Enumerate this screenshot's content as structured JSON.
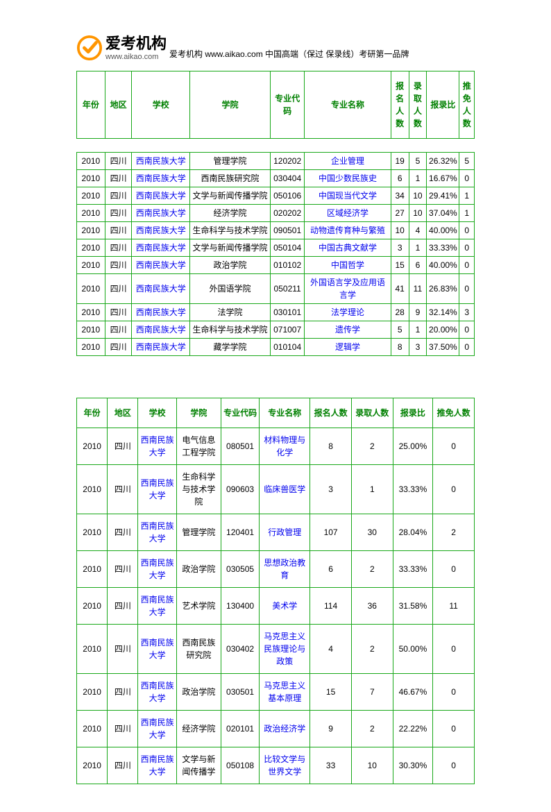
{
  "logo": {
    "cn": "爱考机构",
    "en": "www.aikao.com",
    "tagline": "爱考机构 www.aikao.com  中国高端（保过 保录线）考研第一品牌"
  },
  "headers": [
    "年份",
    "地区",
    "学校",
    "学院",
    "专业代码",
    "专业名称",
    "报名人数",
    "录取人数",
    "报录比",
    "推免人数"
  ],
  "table1": {
    "rows": [
      {
        "year": "2010",
        "region": "四川",
        "school": "西南民族大学",
        "college": "管理学院",
        "code": "120202",
        "major": "企业管理",
        "apply": "19",
        "admit": "5",
        "ratio": "26.32%",
        "exempt": "5"
      },
      {
        "year": "2010",
        "region": "四川",
        "school": "西南民族大学",
        "college": "西南民族研究院",
        "code": "030404",
        "major": "中国少数民族史",
        "apply": "6",
        "admit": "1",
        "ratio": "16.67%",
        "exempt": "0"
      },
      {
        "year": "2010",
        "region": "四川",
        "school": "西南民族大学",
        "college": "文学与新闻传播学院",
        "code": "050106",
        "major": "中国现当代文学",
        "apply": "34",
        "admit": "10",
        "ratio": "29.41%",
        "exempt": "1"
      },
      {
        "year": "2010",
        "region": "四川",
        "school": "西南民族大学",
        "college": "经济学院",
        "code": "020202",
        "major": "区域经济学",
        "apply": "27",
        "admit": "10",
        "ratio": "37.04%",
        "exempt": "1"
      },
      {
        "year": "2010",
        "region": "四川",
        "school": "西南民族大学",
        "college": "生命科学与技术学院",
        "code": "090501",
        "major": "动物遗传育种与繁殖",
        "apply": "10",
        "admit": "4",
        "ratio": "40.00%",
        "exempt": "0"
      },
      {
        "year": "2010",
        "region": "四川",
        "school": "西南民族大学",
        "college": "文学与新闻传播学院",
        "code": "050104",
        "major": "中国古典文献学",
        "apply": "3",
        "admit": "1",
        "ratio": "33.33%",
        "exempt": "0"
      },
      {
        "year": "2010",
        "region": "四川",
        "school": "西南民族大学",
        "college": "政治学院",
        "code": "010102",
        "major": "中国哲学",
        "apply": "15",
        "admit": "6",
        "ratio": "40.00%",
        "exempt": "0"
      },
      {
        "year": "2010",
        "region": "四川",
        "school": "西南民族大学",
        "college": "外国语学院",
        "code": "050211",
        "major": "外国语言学及应用语言学",
        "apply": "41",
        "admit": "11",
        "ratio": "26.83%",
        "exempt": "0"
      },
      {
        "year": "2010",
        "region": "四川",
        "school": "西南民族大学",
        "college": "法学院",
        "code": "030101",
        "major": "法学理论",
        "apply": "28",
        "admit": "9",
        "ratio": "32.14%",
        "exempt": "3"
      },
      {
        "year": "2010",
        "region": "四川",
        "school": "西南民族大学",
        "college": "生命科学与技术学院",
        "code": "071007",
        "major": "遗传学",
        "apply": "5",
        "admit": "1",
        "ratio": "20.00%",
        "exempt": "0"
      },
      {
        "year": "2010",
        "region": "四川",
        "school": "西南民族大学",
        "college": "藏学学院",
        "code": "010104",
        "major": "逻辑学",
        "apply": "8",
        "admit": "3",
        "ratio": "37.50%",
        "exempt": "0"
      }
    ]
  },
  "table2": {
    "rows": [
      {
        "year": "2010",
        "region": "四川",
        "school": "西南民族大学",
        "college": "电气信息工程学院",
        "code": "080501",
        "major": "材料物理与化学",
        "apply": "8",
        "admit": "2",
        "ratio": "25.00%",
        "exempt": "0"
      },
      {
        "year": "2010",
        "region": "四川",
        "school": "西南民族大学",
        "college": "生命科学与技术学院",
        "code": "090603",
        "major": "临床兽医学",
        "apply": "3",
        "admit": "1",
        "ratio": "33.33%",
        "exempt": "0"
      },
      {
        "year": "2010",
        "region": "四川",
        "school": "西南民族大学",
        "college": "管理学院",
        "code": "120401",
        "major": "行政管理",
        "apply": "107",
        "admit": "30",
        "ratio": "28.04%",
        "exempt": "2"
      },
      {
        "year": "2010",
        "region": "四川",
        "school": "西南民族大学",
        "college": "政治学院",
        "code": "030505",
        "major": "思想政治教育",
        "apply": "6",
        "admit": "2",
        "ratio": "33.33%",
        "exempt": "0"
      },
      {
        "year": "2010",
        "region": "四川",
        "school": "西南民族大学",
        "college": "艺术学院",
        "code": "130400",
        "major": "美术学",
        "apply": "114",
        "admit": "36",
        "ratio": "31.58%",
        "exempt": "11"
      },
      {
        "year": "2010",
        "region": "四川",
        "school": "西南民族大学",
        "college": "西南民族研究院",
        "code": "030402",
        "major": "马克思主义民族理论与政策",
        "apply": "4",
        "admit": "2",
        "ratio": "50.00%",
        "exempt": "0"
      },
      {
        "year": "2010",
        "region": "四川",
        "school": "西南民族大学",
        "college": "政治学院",
        "code": "030501",
        "major": "马克思主义基本原理",
        "apply": "15",
        "admit": "7",
        "ratio": "46.67%",
        "exempt": "0"
      },
      {
        "year": "2010",
        "region": "四川",
        "school": "西南民族大学",
        "college": "经济学院",
        "code": "020101",
        "major": "政治经济学",
        "apply": "9",
        "admit": "2",
        "ratio": "22.22%",
        "exempt": "0"
      },
      {
        "year": "2010",
        "region": "四川",
        "school": "西南民族大学",
        "college": "文学与新闻传播学",
        "code": "050108",
        "major": "比较文学与世界文学",
        "apply": "33",
        "admit": "10",
        "ratio": "30.30%",
        "exempt": "0"
      }
    ]
  },
  "styles": {
    "border_color": "#18a818",
    "header_color": "#008000",
    "link_color": "#0000ee",
    "background_color": "#ffffff",
    "font_size_body": 12,
    "font_size_header": 12
  }
}
